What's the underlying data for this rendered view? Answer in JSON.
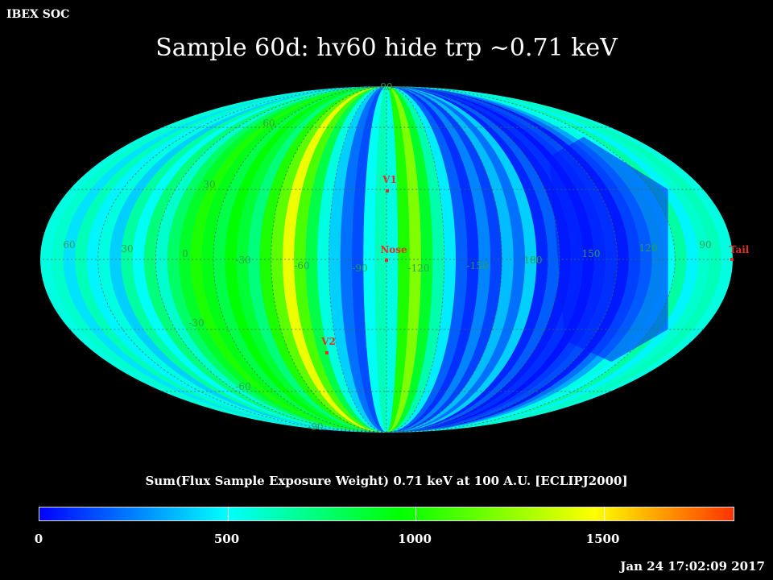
{
  "corner_label": "IBEX SOC",
  "title": "Sample 60d: hv60 hide trp ~0.71 keV",
  "map": {
    "projection": "mollweide",
    "frame": "ECLIPJ2000",
    "latitude_labels": [
      "90",
      "60",
      "30",
      "-30",
      "-60",
      "-90"
    ],
    "longitude_labels": [
      "60",
      "30",
      "0",
      "-30",
      "-60",
      "-90",
      "-120",
      "-150",
      "180",
      "150",
      "120",
      "90"
    ],
    "markers": [
      {
        "label": "V1",
        "lon": -105,
        "lat": 35
      },
      {
        "label": "Nose",
        "lon": -105,
        "lat": 0
      },
      {
        "label": "V2",
        "lon": -72,
        "lat": -34
      },
      {
        "label": "Tail",
        "lon": 75,
        "lat": 0
      }
    ],
    "marker_color": "#e03020",
    "grid_label_color": "#2aa050"
  },
  "colorbar": {
    "label": "Sum(Flux Sample Exposure Weight)  0.71 keV at 100 A.U. [ECLIPJ2000]",
    "min": 0,
    "max": 1850,
    "tick_values": [
      0,
      500,
      1000,
      1500
    ],
    "tick_labels": [
      "0",
      "500",
      "1000",
      "1500"
    ]
  },
  "timestamp": "Jan 24 17:02:09 2017"
}
